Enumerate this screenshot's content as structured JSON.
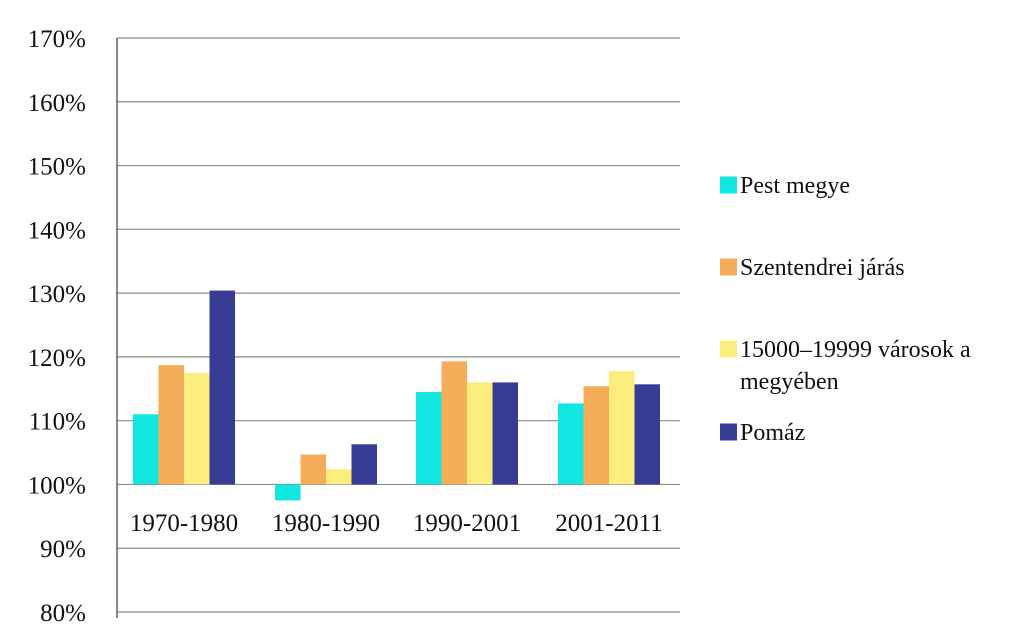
{
  "chart_data": {
    "type": "bar",
    "baseline": 1.0,
    "categories": [
      "1970-1980",
      "1980-1990",
      "1990-2001",
      "2001-2011"
    ],
    "series": [
      {
        "name": "Pest megye",
        "color": "#12e6e0",
        "values": [
          1.11,
          0.975,
          1.145,
          1.127
        ]
      },
      {
        "name": "Szentendrei járás",
        "color": "#f6ad5a",
        "values": [
          1.187,
          1.047,
          1.193,
          1.154
        ]
      },
      {
        "name": "15000–19999 városok a megyében",
        "color": "#fbed7e",
        "values": [
          1.175,
          1.024,
          1.16,
          1.178
        ]
      },
      {
        "name": "Pomáz",
        "color": "#363c94",
        "values": [
          1.304,
          1.063,
          1.16,
          1.157
        ]
      }
    ],
    "ylim": [
      0.8,
      1.7
    ],
    "yticks": [
      "80%",
      "90%",
      "100%",
      "110%",
      "120%",
      "130%",
      "140%",
      "150%",
      "160%",
      "170%"
    ],
    "grid": true,
    "legend_position": "right"
  },
  "legend_lines": [
    [
      "Pest megye"
    ],
    [
      "Szentendrei járás"
    ],
    [
      "15000–19999 városok a",
      "megyében"
    ],
    [
      "Pomáz"
    ]
  ]
}
